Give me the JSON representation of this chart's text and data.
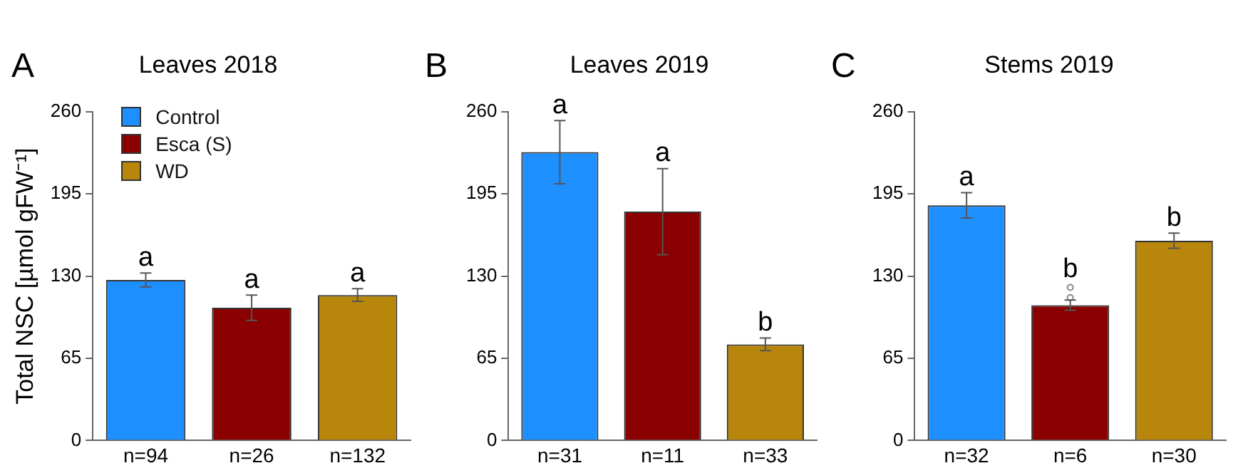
{
  "chart_data": [
    {
      "type": "bar",
      "title": "Leaves 2018",
      "ylabel": "Total NSC [µmol gFW⁻¹]",
      "categories": [
        "n=94",
        "n=26",
        "n=132"
      ],
      "series": [
        {
          "name": "Control",
          "color": "#1e8fff",
          "values": [
            127,
            null,
            null
          ],
          "errors": [
            5.5,
            null,
            null
          ]
        },
        {
          "name": "Esca (S)",
          "color": "#8b0000",
          "values": [
            null,
            105,
            null
          ],
          "errors": [
            null,
            10,
            null
          ]
        },
        {
          "name": "WD",
          "color": "#b8860b",
          "values": [
            null,
            null,
            115
          ],
          "errors": [
            null,
            null,
            5
          ]
        }
      ],
      "ylim": [
        0,
        260
      ],
      "yticks": [
        0,
        65,
        130,
        195,
        260
      ],
      "grid": false,
      "legend": "top left",
      "annotations": [
        "A",
        {
          "text": "a",
          "x": "n=94",
          "y": 132.5
        },
        {
          "text": "a",
          "x": "n=26",
          "y": 115
        },
        {
          "text": "a",
          "x": "n=132",
          "y": 120
        }
      ]
    },
    {
      "type": "bar",
      "title": "Leaves 2019",
      "categories": [
        "n=31",
        "n=11",
        "n=33"
      ],
      "series": [
        {
          "color": "#1e8fff",
          "values": [
            228,
            null,
            null
          ],
          "errors": [
            25,
            null,
            null
          ]
        },
        {
          "color": "#8b0000",
          "values": [
            null,
            181,
            null
          ],
          "errors": [
            null,
            34,
            null
          ]
        },
        {
          "color": "#b8860b",
          "values": [
            null,
            null,
            76
          ],
          "errors": [
            null,
            null,
            5
          ]
        }
      ],
      "ylim": [
        0,
        260
      ],
      "yticks": [
        0,
        65,
        130,
        195,
        260
      ],
      "grid": false,
      "annotations": [
        "B",
        {
          "text": "a",
          "x": "n=31",
          "y": 253
        },
        {
          "text": "a",
          "x": "n=11",
          "y": 215
        },
        {
          "text": "b",
          "x": "n=33",
          "y": 81
        }
      ]
    },
    {
      "type": "bar",
      "title": "Stems 2019",
      "categories": [
        "n=32",
        "n=6",
        "n=30"
      ],
      "series": [
        {
          "color": "#1e8fff",
          "values": [
            186,
            null,
            null
          ],
          "errors": [
            10,
            null,
            null
          ]
        },
        {
          "color": "#8b0000",
          "values": [
            null,
            107,
            null
          ],
          "errors": [
            null,
            4,
            null
          ]
        },
        {
          "color": "#b8860b",
          "values": [
            null,
            null,
            158
          ],
          "errors": [
            null,
            null,
            6
          ]
        },
        {
          "type": "scatter",
          "color": "#888888",
          "x": [
            "n=6",
            "n=6"
          ],
          "values": [
            121,
            113
          ],
          "marker": "circle"
        }
      ],
      "ylim": [
        0,
        260
      ],
      "yticks": [
        0,
        65,
        130,
        195,
        260
      ],
      "grid": false,
      "annotations": [
        "C",
        {
          "text": "a",
          "x": "n=32",
          "y": 196
        },
        {
          "text": "b",
          "x": "n=6",
          "y": 123
        },
        {
          "text": "b",
          "x": "n=30",
          "y": 164
        }
      ]
    }
  ]
}
